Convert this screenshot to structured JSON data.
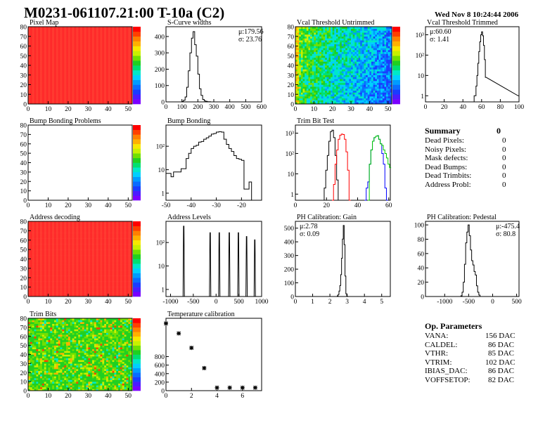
{
  "title": "M0231-061107.21:00 T-10a (C2)",
  "datestamp": "Wed Nov  8 10:24:44 2006",
  "chart_data": [
    {
      "id": "pixmap",
      "type": "heatmap",
      "title": "Pixel Map",
      "xlim": [
        0,
        52
      ],
      "ylim": [
        0,
        80
      ],
      "xticks": [
        0,
        10,
        20,
        30,
        40,
        50
      ],
      "yticks": [
        0,
        10,
        20,
        30,
        40,
        50,
        60,
        70,
        80
      ],
      "fill": "uniform",
      "value": 10,
      "zlim": [
        0,
        10
      ]
    },
    {
      "id": "scurve",
      "type": "bar",
      "title": "S-Curve widths",
      "xlim": [
        0,
        600
      ],
      "ylim": [
        0,
        460
      ],
      "xticks": [
        0,
        100,
        200,
        300,
        400,
        500,
        600
      ],
      "yticks": [
        0,
        100,
        200,
        300,
        400
      ],
      "stats": [
        "μ:179.56",
        "σ: 23.76"
      ],
      "x": [
        105,
        115,
        125,
        135,
        145,
        155,
        165,
        175,
        185,
        195,
        205,
        215,
        225,
        235,
        245,
        255,
        265,
        275
      ],
      "values": [
        3,
        10,
        30,
        90,
        190,
        300,
        390,
        430,
        350,
        280,
        170,
        80,
        40,
        15,
        6,
        3,
        1,
        1
      ]
    },
    {
      "id": "vcalU",
      "type": "heatmap",
      "title": "Vcal Threshold Untrimmed",
      "xlim": [
        0,
        52
      ],
      "ylim": [
        0,
        80
      ],
      "xticks": [
        0,
        10,
        20,
        30,
        40,
        50
      ],
      "yticks": [
        0,
        10,
        20,
        30,
        40,
        50,
        60,
        70,
        80
      ],
      "fill": "gradient",
      "zlim": [
        85,
        125
      ]
    },
    {
      "id": "vcalT",
      "type": "bar",
      "title": "Vcal Threshold Trimmed",
      "log": true,
      "xlim": [
        0,
        100
      ],
      "ylim": [
        0.5,
        2500
      ],
      "xticks": [
        0,
        20,
        40,
        60,
        80,
        100
      ],
      "yticks": [
        1,
        10,
        100,
        1000
      ],
      "stats": [
        "μ:60.60",
        "σ: 1.41"
      ],
      "x": [
        52.5,
        53.5,
        54.5,
        55.5,
        56.5,
        57.5,
        58.5,
        59.5,
        60.5,
        61.5,
        62.5,
        63.5,
        64.5,
        99.5
      ],
      "values": [
        1,
        1,
        3,
        10,
        40,
        150,
        450,
        1000,
        1400,
        900,
        300,
        60,
        8,
        1
      ]
    },
    {
      "id": "bumpProb",
      "type": "heatmap",
      "title": "Bump Bonding Problems",
      "xlim": [
        0,
        52
      ],
      "ylim": [
        0,
        80
      ],
      "xticks": [
        0,
        10,
        20,
        30,
        40,
        50
      ],
      "yticks": [
        0,
        10,
        20,
        30,
        40,
        50,
        60,
        70,
        80
      ],
      "fill": "empty",
      "zlim": [
        -2,
        2
      ]
    },
    {
      "id": "bump",
      "type": "bar",
      "title": "Bump Bonding",
      "log": true,
      "xlim": [
        -50,
        -12
      ],
      "ylim": [
        0.5,
        800
      ],
      "xticks": [
        -50,
        -40,
        -30,
        -20
      ],
      "yticks": [
        1,
        10,
        100
      ],
      "x": [
        -49.5,
        -48.5,
        -47.5,
        -46.5,
        -45.5,
        -44.5,
        -43.5,
        -42.5,
        -41.5,
        -40.5,
        -39.5,
        -38.5,
        -37.5,
        -36.5,
        -35.5,
        -34.5,
        -33.5,
        -32.5,
        -31.5,
        -30.5,
        -29.5,
        -28.5,
        -27.5,
        -26.5,
        -25.5,
        -24.5,
        -23.5,
        -22.5,
        -21.5,
        -20.5,
        -19.5,
        -18.5,
        -17.5,
        -16.5
      ],
      "values": [
        7,
        7,
        5,
        8,
        8,
        8,
        11,
        11,
        30,
        50,
        80,
        100,
        110,
        150,
        160,
        200,
        230,
        270,
        330,
        350,
        400,
        420,
        400,
        200,
        120,
        80,
        60,
        40,
        30,
        28,
        25,
        1.5,
        1.5,
        3
      ]
    },
    {
      "id": "trimtest",
      "type": "line",
      "title": "Trim Bit Test",
      "log": true,
      "xlim": [
        0,
        61
      ],
      "ylim": [
        0.5,
        2500
      ],
      "xticks": [
        0,
        20,
        40,
        60
      ],
      "yticks": [
        1,
        10,
        100,
        1000
      ],
      "series": [
        {
          "color": "#000000",
          "x": [
            18,
            19,
            20,
            21,
            22,
            23,
            24,
            25,
            26,
            27,
            28
          ],
          "values": [
            0.5,
            2,
            15,
            80,
            400,
            1200,
            1400,
            600,
            80,
            5,
            0.5
          ]
        },
        {
          "color": "#ff0000",
          "x": [
            24,
            25,
            26,
            27,
            28,
            29,
            30,
            31,
            32,
            33,
            34,
            35
          ],
          "values": [
            0.5,
            3,
            30,
            150,
            500,
            800,
            900,
            850,
            500,
            120,
            15,
            0.5
          ]
        },
        {
          "color": "#0000ff",
          "x": [
            45,
            46,
            47,
            48,
            49,
            50,
            51,
            52,
            53,
            54,
            55,
            56,
            57,
            58,
            59
          ],
          "values": [
            0.5,
            2,
            4,
            30,
            150,
            400,
            600,
            700,
            750,
            500,
            300,
            100,
            30,
            2,
            0.5
          ]
        },
        {
          "color": "#00cc00",
          "x": [
            47,
            48,
            49,
            50,
            51,
            52,
            53,
            54,
            55,
            56,
            57,
            58,
            59,
            60,
            61
          ],
          "values": [
            0.5,
            30,
            150,
            400,
            600,
            700,
            750,
            500,
            300,
            250,
            150,
            100,
            60,
            30,
            20
          ]
        }
      ]
    },
    {
      "id": "addr",
      "type": "heatmap",
      "title": "Address decoding",
      "xlim": [
        0,
        52
      ],
      "ylim": [
        0,
        80
      ],
      "xticks": [
        0,
        10,
        20,
        30,
        40,
        50
      ],
      "yticks": [
        0,
        10,
        20,
        30,
        40,
        50,
        60,
        70,
        80
      ],
      "fill": "uniform",
      "value": 1,
      "zlim": [
        0,
        1
      ]
    },
    {
      "id": "addrlev",
      "type": "bar",
      "title": "Address Levels",
      "log": true,
      "xlim": [
        -1100,
        1000
      ],
      "ylim": [
        0.5,
        800
      ],
      "xticks": [
        -1000,
        -500,
        0,
        500,
        1000
      ],
      "yticks": [
        1,
        10,
        100
      ],
      "peaks": [
        [
          -710,
          500
        ],
        [
          -130,
          260
        ],
        [
          70,
          260
        ],
        [
          290,
          260
        ],
        [
          490,
          260
        ],
        [
          670,
          180
        ],
        [
          850,
          130
        ]
      ]
    },
    {
      "id": "gain",
      "type": "bar",
      "title": "PH Calibration: Gain",
      "xlim": [
        0,
        5.5
      ],
      "ylim": [
        0,
        550
      ],
      "xticks": [
        0,
        1,
        2,
        3,
        4,
        5
      ],
      "yticks": [
        0,
        100,
        200,
        300,
        400,
        500
      ],
      "stats": [
        "μ:2.78",
        "σ: 0.09"
      ],
      "x": [
        2.45,
        2.5,
        2.55,
        2.6,
        2.65,
        2.7,
        2.75,
        2.8,
        2.85,
        2.9,
        2.95,
        3.0
      ],
      "values": [
        5,
        15,
        40,
        80,
        160,
        280,
        420,
        520,
        380,
        150,
        20,
        2
      ]
    },
    {
      "id": "ped",
      "type": "bar",
      "title": "PH Calibration: Pedestal",
      "xlim": [
        -1400,
        550
      ],
      "ylim": [
        0,
        105
      ],
      "xticks": [
        -1000,
        -500,
        0,
        500
      ],
      "yticks": [
        0,
        20,
        40,
        60,
        80,
        100
      ],
      "stats": [
        "μ:-475.4",
        "σ: 80.8"
      ],
      "x": [
        -650,
        -625,
        -600,
        -575,
        -550,
        -525,
        -500,
        -475,
        -450,
        -425,
        -400,
        -375,
        -350,
        -325,
        -300,
        -275,
        -250
      ],
      "values": [
        1,
        6,
        20,
        45,
        75,
        90,
        100,
        85,
        65,
        50,
        44,
        35,
        30,
        15,
        6,
        2,
        0
      ]
    },
    {
      "id": "trimbits",
      "type": "heatmap",
      "title": "Trim Bits",
      "xlim": [
        0,
        52
      ],
      "ylim": [
        0,
        80
      ],
      "xticks": [
        0,
        10,
        20,
        30,
        40,
        50
      ],
      "yticks": [
        0,
        10,
        20,
        30,
        40,
        50,
        60,
        70,
        80
      ],
      "fill": "random",
      "zlim": [
        0,
        16
      ]
    },
    {
      "id": "temp",
      "type": "scatter",
      "title": "Temperature calibration",
      "xlim": [
        0,
        7.5
      ],
      "ylim": [
        0,
        1700
      ],
      "xticks": [
        0,
        2,
        4,
        6
      ],
      "yticks": [
        0,
        200,
        400,
        600,
        800
      ],
      "x": [
        0,
        1,
        2,
        3,
        4,
        5,
        6,
        7
      ],
      "values": [
        1580,
        1345,
        1005,
        530,
        70,
        70,
        70,
        70
      ]
    }
  ],
  "summary": {
    "title": "Summary",
    "total": "0",
    "rows": [
      {
        "label": "Dead Pixels:",
        "value": "0"
      },
      {
        "label": "Noisy Pixels:",
        "value": "0"
      },
      {
        "label": "Mask defects:",
        "value": "0"
      },
      {
        "label": "Dead Bumps:",
        "value": "0"
      },
      {
        "label": "Dead Trimbits:",
        "value": "0"
      },
      {
        "label": "Address Probl:",
        "value": "0"
      }
    ]
  },
  "op_params": {
    "title": "Op. Parameters",
    "rows": [
      {
        "label": "VANA:",
        "value": "156 DAC"
      },
      {
        "label": "CALDEL:",
        "value": "86 DAC"
      },
      {
        "label": "VTHR:",
        "value": "85 DAC"
      },
      {
        "label": "VTRIM:",
        "value": "102 DAC"
      },
      {
        "label": "IBIAS_DAC:",
        "value": "86 DAC"
      },
      {
        "label": "VOFFSETOP:",
        "value": "82 DAC"
      }
    ]
  }
}
